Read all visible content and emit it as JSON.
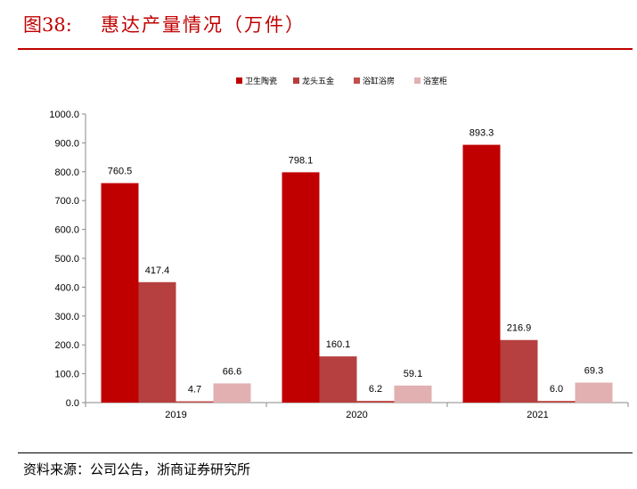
{
  "header": {
    "figure_no": "图38:",
    "title": "惠达产量情况（万件）"
  },
  "source": "资料来源：公司公告，浙商证券研究所",
  "colors": {
    "title_red": "#c00000",
    "series": [
      "#c00000",
      "#b5403f",
      "#c0504d",
      "#e2b0b0"
    ]
  },
  "chart_data": {
    "type": "bar",
    "categories": [
      "2019",
      "2020",
      "2021"
    ],
    "series": [
      {
        "name": "卫生陶瓷",
        "values": [
          760.5,
          798.1,
          893.3
        ],
        "labels": [
          "760.5",
          "798.1",
          "893.3"
        ]
      },
      {
        "name": "龙头五金",
        "values": [
          417.4,
          160.1,
          216.9
        ],
        "labels": [
          "417.4",
          "160.1",
          "216.9"
        ]
      },
      {
        "name": "浴缸浴房",
        "values": [
          4.7,
          6.2,
          6.0
        ],
        "labels": [
          "4.7",
          "6.2",
          "6.0"
        ]
      },
      {
        "name": "浴室柜",
        "values": [
          66.6,
          59.1,
          69.3
        ],
        "labels": [
          "66.6",
          "59.1",
          "69.3"
        ]
      }
    ],
    "ylim": [
      0,
      1000
    ],
    "yticks": [
      "0.0",
      "100.0",
      "200.0",
      "300.0",
      "400.0",
      "500.0",
      "600.0",
      "700.0",
      "800.0",
      "900.0",
      "1000.0"
    ],
    "legend_position": "top-right",
    "grid": false
  }
}
